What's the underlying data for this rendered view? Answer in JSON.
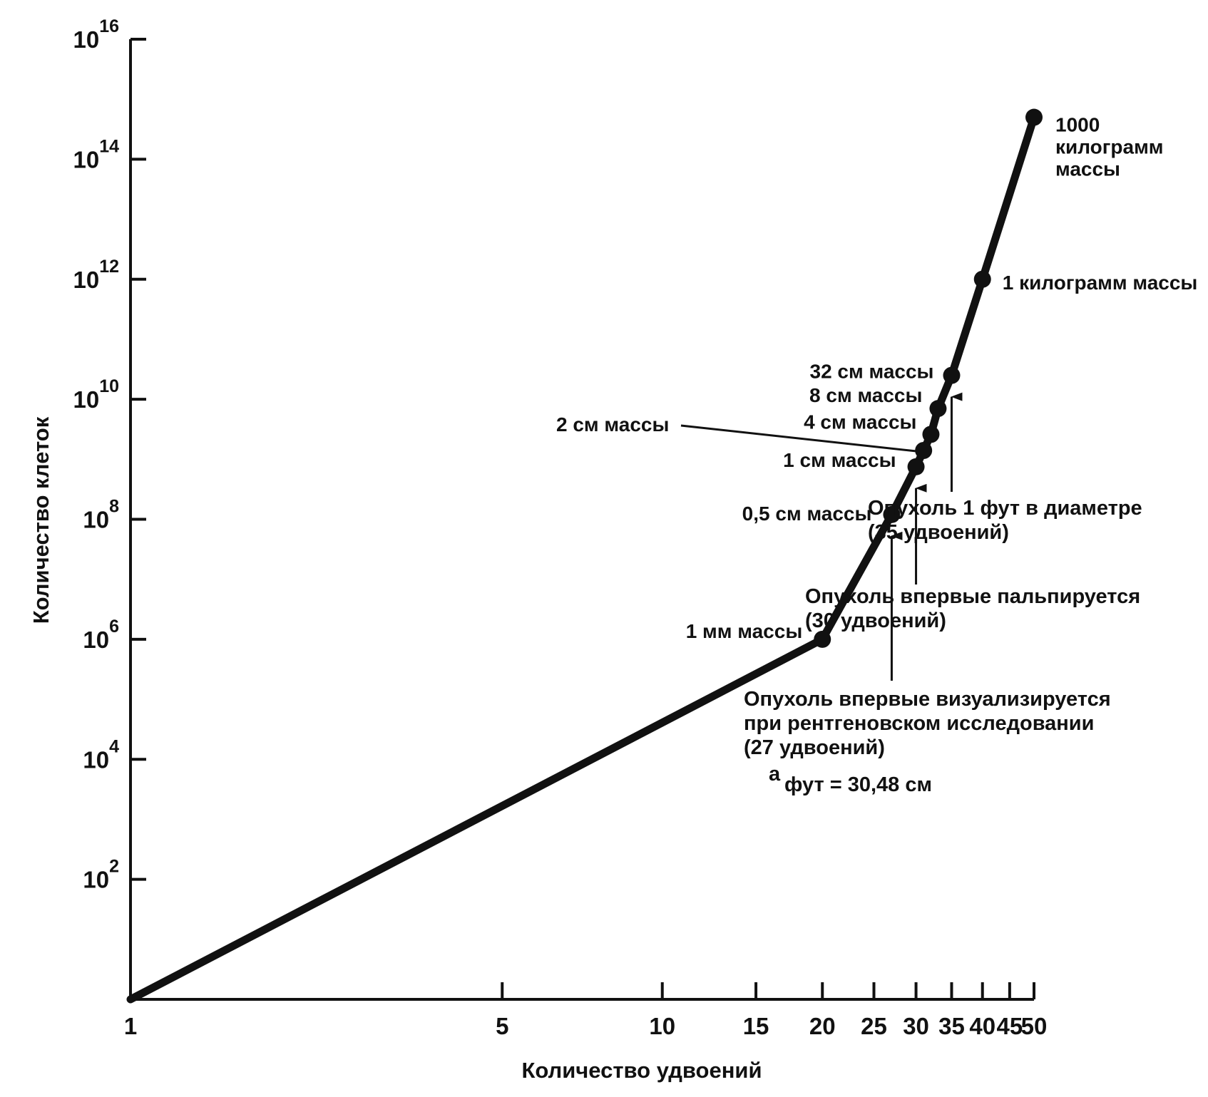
{
  "chart_data": {
    "type": "line",
    "xlabel": "Количество удвоений",
    "ylabel": "Количество клеток",
    "x_scale": "log",
    "y_scale": "log",
    "x_ticks": [
      1,
      5,
      10,
      15,
      20,
      25,
      30,
      35,
      40,
      45,
      50
    ],
    "x_tick_labels": [
      "1",
      "5",
      "10",
      "15",
      "20",
      "25",
      "30",
      "35",
      "40",
      "45",
      "50"
    ],
    "y_ticks": [
      {
        "base": "10",
        "exp": "2",
        "value": 100
      },
      {
        "base": "10",
        "exp": "4",
        "value": 10000
      },
      {
        "base": "10",
        "exp": "6",
        "value": 1000000
      },
      {
        "base": "10",
        "exp": "8",
        "value": 100000000
      },
      {
        "base": "10",
        "exp": "10",
        "value": 10000000000
      },
      {
        "base": "10",
        "exp": "12",
        "value": 1000000000000
      },
      {
        "base": "10",
        "exp": "14",
        "value": 100000000000000
      },
      {
        "base": "10",
        "exp": "16",
        "value": 10000000000000000
      }
    ],
    "xlim": [
      1,
      50
    ],
    "ylim": [
      1,
      10000000000000000
    ],
    "grid": false,
    "series": [
      {
        "x": [
          1,
          20,
          27,
          30,
          31,
          32,
          33,
          35,
          40,
          50
        ],
        "y": [
          1,
          1000000,
          120000000,
          750000000,
          1400000000,
          2600000000,
          7000000000,
          25000000000,
          1000000000000,
          500000000000000
        ]
      }
    ],
    "point_labels": [
      {
        "text": "1 мм массы",
        "index": 1
      },
      {
        "text": "0,5 см массы",
        "index": 2
      },
      {
        "text": "1 см массы",
        "index": 3
      },
      {
        "text": "2 см массы",
        "index": 4
      },
      {
        "text": "4 см массы",
        "index": 5
      },
      {
        "text": "8 см массы",
        "index": 6
      },
      {
        "text": "32 см массы",
        "index": 7
      },
      {
        "text": "1 килограмм массы",
        "index": 8
      },
      {
        "lines": [
          "1000",
          "килограмм",
          "массы"
        ],
        "index": 9
      }
    ],
    "annotations": [
      {
        "lines": [
          "Опухоль 1 фут  в  диаметре",
          "(35 удвоений)"
        ],
        "arrow_to_index": 7
      },
      {
        "lines": [
          "Опухоль впервые пальпируется",
          "(30 удвоений)"
        ],
        "arrow_to_index": 3
      },
      {
        "lines": [
          "Опухоль впервые визуализируется",
          "при рентгеновском  исследовании",
          "(27 удвоений)"
        ],
        "arrow_to_index": 2
      }
    ],
    "footnote": {
      "mark": "a",
      "text": "фут = 30,48 см"
    }
  }
}
